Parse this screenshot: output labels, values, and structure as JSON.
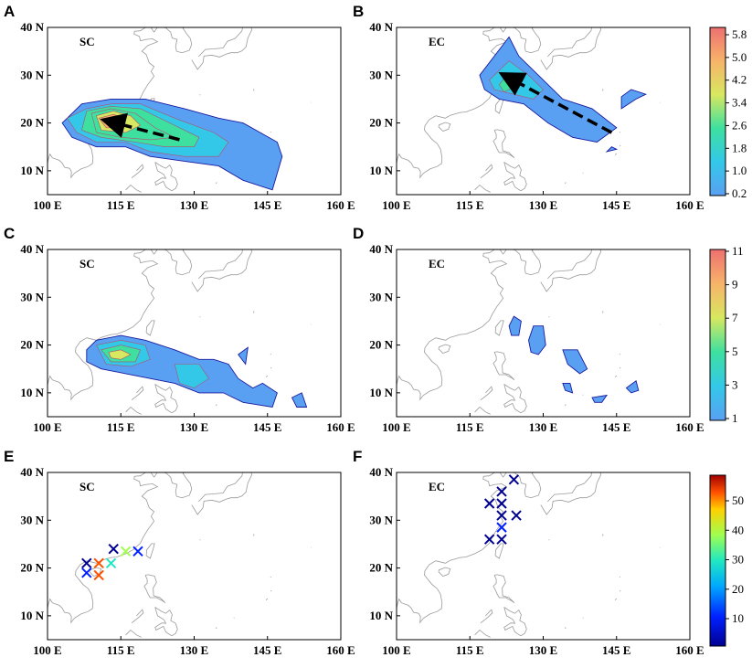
{
  "chart_data": [
    {
      "panel": "A",
      "type": "heatmap",
      "region_label": "SC",
      "x_ticks": [
        "100 E",
        "115 E",
        "130 E",
        "145 E",
        "160 E"
      ],
      "y_ticks": [
        "10 N",
        "20 N",
        "30 N",
        "40 N"
      ],
      "xlim": [
        100,
        160
      ],
      "ylim": [
        5,
        40
      ],
      "contours": [
        {
          "level": 0.2,
          "poly": [
            [
              107,
              24
            ],
            [
              113,
              25
            ],
            [
              120,
              25
            ],
            [
              128,
              23
            ],
            [
              135,
              21
            ],
            [
              140,
              20
            ],
            [
              147,
              16
            ],
            [
              148,
              13
            ],
            [
              146,
              6
            ],
            [
              140,
              8
            ],
            [
              135,
              11
            ],
            [
              128,
              12
            ],
            [
              121,
              13
            ],
            [
              116,
              15
            ],
            [
              110,
              15
            ],
            [
              105,
              17
            ],
            [
              103,
              20
            ]
          ]
        },
        {
          "level": 1.0,
          "poly": [
            [
              108,
              23
            ],
            [
              113,
              24
            ],
            [
              119,
              24
            ],
            [
              126,
              21
            ],
            [
              134,
              18
            ],
            [
              137,
              16
            ],
            [
              135,
              13
            ],
            [
              128,
              13
            ],
            [
              121,
              14
            ],
            [
              116,
              16
            ],
            [
              110,
              16
            ],
            [
              106,
              18
            ],
            [
              104,
              21
            ]
          ]
        },
        {
          "level": 1.8,
          "poly": [
            [
              108,
              22.5
            ],
            [
              113,
              23.5
            ],
            [
              119,
              23
            ],
            [
              125,
              20
            ],
            [
              131,
              17
            ],
            [
              130,
              15
            ],
            [
              124,
              15
            ],
            [
              118,
              16
            ],
            [
              111,
              17
            ],
            [
              107,
              18.5
            ]
          ]
        },
        {
          "level": 2.6,
          "poly": [
            [
              109,
              22
            ],
            [
              113,
              23
            ],
            [
              118,
              22
            ],
            [
              122,
              19
            ],
            [
              126,
              17
            ],
            [
              121,
              16.5
            ],
            [
              115,
              17
            ],
            [
              110,
              18
            ]
          ]
        },
        {
          "level": 3.4,
          "poly": [
            [
              110,
              21.5
            ],
            [
              113.5,
              22.5
            ],
            [
              117,
              21.5
            ],
            [
              119,
              19.5
            ],
            [
              116,
              18
            ],
            [
              111,
              18.5
            ]
          ]
        },
        {
          "level": 4.2,
          "poly": [
            [
              110.5,
              21
            ],
            [
              113.5,
              21.8
            ],
            [
              116,
              20.8
            ],
            [
              115,
              19
            ],
            [
              112,
              19
            ]
          ]
        },
        {
          "level": 5.0,
          "poly": [
            [
              111.5,
              20.5
            ],
            [
              113.5,
              21
            ],
            [
              114.5,
              20
            ],
            [
              113,
              19.3
            ]
          ]
        }
      ],
      "track": [
        [
          127,
          16.5
        ],
        [
          112,
          20.5
        ]
      ],
      "colorbar": {
        "ticks": [
          "0.2",
          "1.0",
          "1.8",
          "2.6",
          "3.4",
          "4.2",
          "5.0",
          "5.8"
        ]
      }
    },
    {
      "panel": "B",
      "type": "heatmap",
      "region_label": "EC",
      "x_ticks": [
        "100 E",
        "115 E",
        "130 E",
        "145 E",
        "160 E"
      ],
      "y_ticks": [
        "10 N",
        "20 N",
        "30 N",
        "40 N"
      ],
      "xlim": [
        100,
        160
      ],
      "ylim": [
        5,
        40
      ],
      "contours": [
        {
          "level": 0.2,
          "poly": [
            [
              117,
              30
            ],
            [
              123,
              38
            ],
            [
              125,
              34
            ],
            [
              129,
              30
            ],
            [
              134,
              25
            ],
            [
              140,
              23
            ],
            [
              145,
              19
            ],
            [
              141,
              16
            ],
            [
              136,
              17
            ],
            [
              131,
              20
            ],
            [
              126,
              24
            ],
            [
              121,
              25
            ],
            [
              118,
              27
            ]
          ]
        },
        {
          "level": 0.2,
          "poly": [
            [
              146,
              23
            ],
            [
              149,
              25
            ],
            [
              151,
              26
            ],
            [
              148,
              27
            ],
            [
              146,
              25.5
            ]
          ]
        },
        {
          "level": 0.2,
          "poly": [
            [
              143,
              14
            ],
            [
              145,
              14.5
            ],
            [
              144,
              15
            ]
          ]
        },
        {
          "level": 1.0,
          "poly": [
            [
              119,
              29
            ],
            [
              123,
              33
            ],
            [
              127,
              30
            ],
            [
              130,
              27
            ],
            [
              128,
              25
            ],
            [
              124,
              26
            ],
            [
              120,
              27
            ]
          ]
        },
        {
          "level": 1.8,
          "poly": [
            [
              121,
              28
            ],
            [
              123,
              30.5
            ],
            [
              125,
              28
            ],
            [
              122,
              26.5
            ]
          ]
        }
      ],
      "track": [
        [
          144,
          18
        ],
        [
          122,
          30
        ]
      ],
      "colorbar": {
        "ticks": [
          "0.2",
          "1.0",
          "1.8",
          "2.6",
          "3.4",
          "4.2",
          "5.0",
          "5.8"
        ]
      }
    },
    {
      "panel": "C",
      "type": "heatmap",
      "region_label": "SC",
      "x_ticks": [
        "100 E",
        "115 E",
        "130 E",
        "145 E",
        "160 E"
      ],
      "y_ticks": [
        "10 N",
        "20 N",
        "30 N",
        "40 N"
      ],
      "xlim": [
        100,
        160
      ],
      "ylim": [
        5,
        40
      ],
      "contours": [
        {
          "level": 1,
          "poly": [
            [
              108,
              19
            ],
            [
              110,
              21
            ],
            [
              115,
              22
            ],
            [
              120,
              21
            ],
            [
              126,
              19
            ],
            [
              131,
              17
            ],
            [
              134,
              17
            ],
            [
              137,
              16
            ],
            [
              139,
              13
            ],
            [
              142,
              11
            ],
            [
              144,
              12
            ],
            [
              147,
              10
            ],
            [
              146,
              7
            ],
            [
              140,
              8
            ],
            [
              136,
              10
            ],
            [
              131,
              10
            ],
            [
              126,
              12
            ],
            [
              121,
              13
            ],
            [
              116,
              14
            ],
            [
              111,
              15
            ],
            [
              108,
              16.5
            ]
          ]
        },
        {
          "level": 1,
          "poly": [
            [
              139,
              18
            ],
            [
              141,
              19.5
            ],
            [
              140.5,
              16
            ]
          ]
        },
        {
          "level": 1,
          "poly": [
            [
              150,
              9
            ],
            [
              152,
              10
            ],
            [
              153,
              7
            ],
            [
              151,
              7
            ]
          ]
        },
        {
          "level": 3,
          "poly": [
            [
              110,
              20
            ],
            [
              115,
              21
            ],
            [
              120,
              20
            ],
            [
              121,
              17
            ],
            [
              117,
              15.5
            ],
            [
              112,
              16
            ]
          ]
        },
        {
          "level": 3,
          "poly": [
            [
              126,
              16
            ],
            [
              131,
              16
            ],
            [
              133,
              13
            ],
            [
              130,
              11
            ],
            [
              127,
              12
            ]
          ]
        },
        {
          "level": 5,
          "poly": [
            [
              111,
              19
            ],
            [
              115,
              20
            ],
            [
              119,
              19
            ],
            [
              118,
              16.5
            ],
            [
              113,
              16.5
            ]
          ]
        },
        {
          "level": 7,
          "poly": [
            [
              112.5,
              18.5
            ],
            [
              115,
              19
            ],
            [
              117,
              18
            ],
            [
              115,
              17
            ],
            [
              113,
              17.3
            ]
          ]
        }
      ],
      "colorbar": {
        "ticks": [
          "1",
          "3",
          "5",
          "7",
          "9",
          "11"
        ]
      }
    },
    {
      "panel": "D",
      "type": "heatmap",
      "region_label": "EC",
      "x_ticks": [
        "100 E",
        "115 E",
        "130 E",
        "145 E",
        "160 E"
      ],
      "y_ticks": [
        "10 N",
        "20 N",
        "30 N",
        "40 N"
      ],
      "xlim": [
        100,
        160
      ],
      "ylim": [
        5,
        40
      ],
      "contours": [
        {
          "level": 1,
          "poly": [
            [
              123,
              24
            ],
            [
              124,
              26
            ],
            [
              125.5,
              25
            ],
            [
              125,
              22
            ],
            [
              123.5,
              22
            ]
          ]
        },
        {
          "level": 1,
          "poly": [
            [
              127,
              21
            ],
            [
              128,
              24
            ],
            [
              130,
              24
            ],
            [
              130.5,
              20
            ],
            [
              129,
              18
            ],
            [
              127.5,
              18.5
            ]
          ]
        },
        {
          "level": 1,
          "poly": [
            [
              134,
              19
            ],
            [
              137,
              19
            ],
            [
              139,
              15
            ],
            [
              137.5,
              14
            ],
            [
              135,
              16
            ]
          ]
        },
        {
          "level": 1,
          "poly": [
            [
              134,
              12
            ],
            [
              135.5,
              12
            ],
            [
              136,
              10
            ],
            [
              134.5,
              10.5
            ]
          ]
        },
        {
          "level": 1,
          "poly": [
            [
              140,
              9
            ],
            [
              143,
              9.5
            ],
            [
              142,
              8
            ],
            [
              140.5,
              8
            ]
          ]
        },
        {
          "level": 1,
          "poly": [
            [
              147,
              11
            ],
            [
              149,
              12.5
            ],
            [
              149.5,
              10.5
            ],
            [
              148,
              10
            ]
          ]
        }
      ],
      "colorbar": {
        "ticks": [
          "1",
          "3",
          "5",
          "7",
          "9",
          "11"
        ]
      }
    },
    {
      "panel": "E",
      "type": "scatter",
      "region_label": "SC",
      "x_ticks": [
        "100 E",
        "115 E",
        "130 E",
        "145 E",
        "160 E"
      ],
      "y_ticks": [
        "10 N",
        "20 N",
        "30 N",
        "40 N"
      ],
      "xlim": [
        100,
        160
      ],
      "ylim": [
        5,
        40
      ],
      "markers": [
        {
          "x": 108,
          "y": 21,
          "value": 8
        },
        {
          "x": 108,
          "y": 19,
          "value": 20
        },
        {
          "x": 110.5,
          "y": 21,
          "value": 55
        },
        {
          "x": 110.5,
          "y": 18.5,
          "value": 55
        },
        {
          "x": 113,
          "y": 21,
          "value": 35
        },
        {
          "x": 113.5,
          "y": 24,
          "value": 10
        },
        {
          "x": 116,
          "y": 23.5,
          "value": 42
        },
        {
          "x": 118.5,
          "y": 23.5,
          "value": 17
        }
      ],
      "colorbar": {
        "ticks": [
          "10",
          "20",
          "30",
          "40",
          "50"
        ]
      }
    },
    {
      "panel": "F",
      "type": "scatter",
      "region_label": "EC",
      "x_ticks": [
        "100 E",
        "115 E",
        "130 E",
        "145 E",
        "160 E"
      ],
      "y_ticks": [
        "10 N",
        "20 N",
        "30 N",
        "40 N"
      ],
      "xlim": [
        100,
        160
      ],
      "ylim": [
        5,
        40
      ],
      "markers": [
        {
          "x": 124,
          "y": 38.5,
          "value": 6
        },
        {
          "x": 121.5,
          "y": 36,
          "value": 6
        },
        {
          "x": 119,
          "y": 33.5,
          "value": 6
        },
        {
          "x": 121.5,
          "y": 33.5,
          "value": 6
        },
        {
          "x": 121.5,
          "y": 31,
          "value": 6
        },
        {
          "x": 124.5,
          "y": 31,
          "value": 6
        },
        {
          "x": 121.5,
          "y": 28.5,
          "value": 20
        },
        {
          "x": 119,
          "y": 26,
          "value": 8
        },
        {
          "x": 121.5,
          "y": 26,
          "value": 8
        }
      ],
      "colorbar": {
        "ticks": [
          "10",
          "20",
          "30",
          "40",
          "50"
        ]
      }
    }
  ]
}
